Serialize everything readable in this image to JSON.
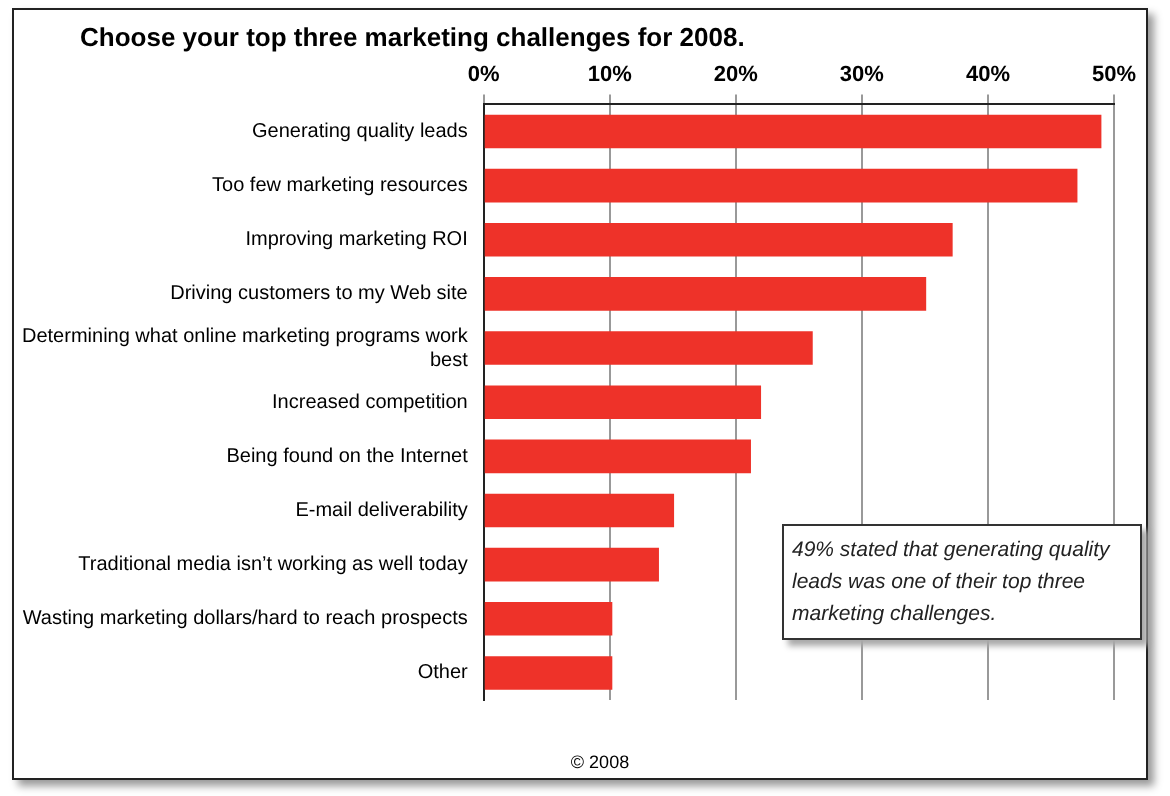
{
  "chart_data": {
    "type": "bar",
    "orientation": "horizontal",
    "title": "Choose your top three marketing challenges for 2008.",
    "categories": [
      "Generating quality leads",
      "Too few marketing resources",
      "Improving marketing ROI",
      "Driving customers to my Web site",
      "Determining what online marketing programs work best",
      "Increased competition",
      "Being found on the Internet",
      "E-mail deliverability",
      "Traditional media isn’t working as well today",
      "Wasting marketing dollars/hard to reach prospects",
      "Other"
    ],
    "values": [
      49,
      47.1,
      37.2,
      35.1,
      26.1,
      22,
      21.2,
      15.1,
      13.9,
      10.2,
      10.2
    ],
    "color": "#ee3229",
    "xlim": [
      0,
      50
    ],
    "xticks": [
      {
        "value": 0,
        "label": "0%"
      },
      {
        "value": 10,
        "label": "10%"
      },
      {
        "value": 20,
        "label": "20%"
      },
      {
        "value": 30,
        "label": "30%"
      },
      {
        "value": 40,
        "label": "40%"
      },
      {
        "value": 50,
        "label": "50%"
      }
    ],
    "grid": "x",
    "legend": false,
    "annotations": [
      "49% stated that generating quality leads was one of their top three marketing challenges.",
      "© 2008"
    ]
  }
}
